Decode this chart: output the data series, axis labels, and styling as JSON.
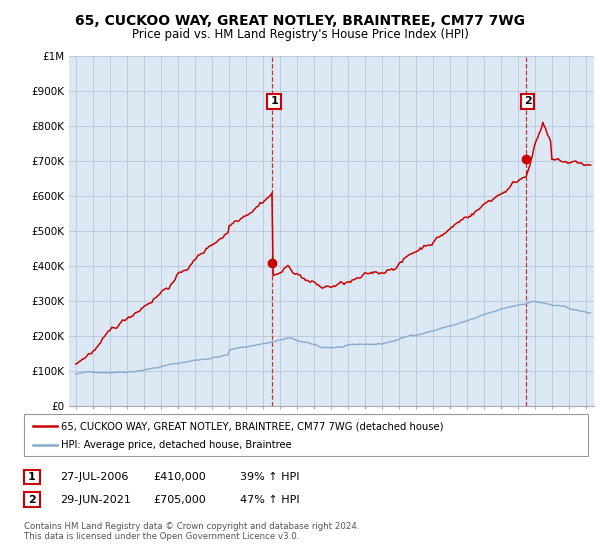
{
  "title": "65, CUCKOO WAY, GREAT NOTLEY, BRAINTREE, CM77 7WG",
  "subtitle": "Price paid vs. HM Land Registry's House Price Index (HPI)",
  "ylabel_ticks": [
    "£0",
    "£100K",
    "£200K",
    "£300K",
    "£400K",
    "£500K",
    "£600K",
    "£700K",
    "£800K",
    "£900K",
    "£1M"
  ],
  "ytick_vals": [
    0,
    100000,
    200000,
    300000,
    400000,
    500000,
    600000,
    700000,
    800000,
    900000,
    1000000
  ],
  "xlim_start": 1994.6,
  "xlim_end": 2025.5,
  "ylim": [
    0,
    1000000
  ],
  "sale1_date": 2006.57,
  "sale1_price": 410000,
  "sale2_date": 2021.49,
  "sale2_price": 705000,
  "marker_color": "#cc0000",
  "hpi_color": "#88aacc",
  "line_color": "#cc0000",
  "chart_bg": "#dce9f5",
  "legend_line1": "65, CUCKOO WAY, GREAT NOTLEY, BRAINTREE, CM77 7WG (detached house)",
  "legend_line2": "HPI: Average price, detached house, Braintree",
  "table_row1": [
    "1",
    "27-JUL-2006",
    "£410,000",
    "39% ↑ HPI"
  ],
  "table_row2": [
    "2",
    "29-JUN-2021",
    "£705,000",
    "47% ↑ HPI"
  ],
  "footer": "Contains HM Land Registry data © Crown copyright and database right 2024.\nThis data is licensed under the Open Government Licence v3.0.",
  "background_color": "#ffffff",
  "grid_color": "#bbccdd",
  "title_fontsize": 10,
  "subtitle_fontsize": 8.5,
  "tick_fontsize": 7.5
}
